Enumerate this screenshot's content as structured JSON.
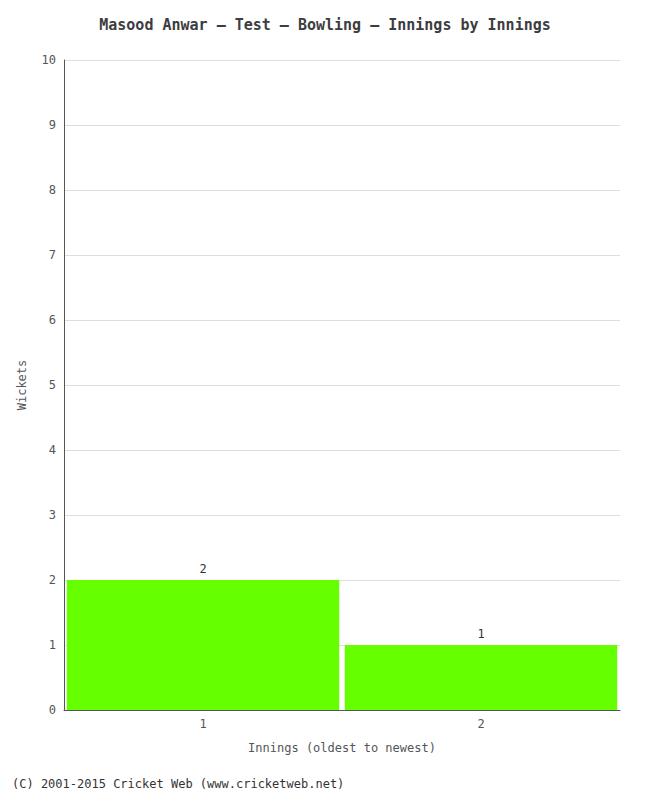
{
  "chart_data": {
    "type": "bar",
    "title": "Masood Anwar – Test – Bowling – Innings by Innings",
    "xlabel": "Innings (oldest to newest)",
    "ylabel": "Wickets",
    "categories": [
      "1",
      "2"
    ],
    "values": [
      2,
      1
    ],
    "color": "#66ff00",
    "ylim": [
      0,
      10
    ],
    "yticks": [
      0,
      1,
      2,
      3,
      4,
      5,
      6,
      7,
      8,
      9,
      10
    ],
    "grid": true,
    "data_labels": true,
    "annotations": [
      "(C) 2001-2015 Cricket Web (www.cricketweb.net)"
    ]
  }
}
